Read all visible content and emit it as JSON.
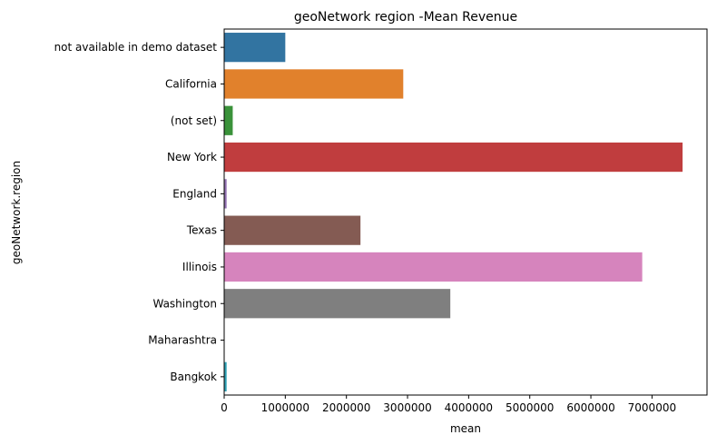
{
  "chart_data": {
    "type": "bar",
    "orientation": "horizontal",
    "title": "geoNetwork region -Mean Revenue",
    "xlabel": "mean",
    "ylabel": "geoNetwork.region",
    "xlim": [
      0,
      7900000
    ],
    "xticks": [
      0,
      1000000,
      2000000,
      3000000,
      4000000,
      5000000,
      6000000,
      7000000
    ],
    "xtick_labels": [
      "0",
      "1000000",
      "2000000",
      "3000000",
      "4000000",
      "5000000",
      "6000000",
      "7000000"
    ],
    "grid": false,
    "categories": [
      "not available in demo dataset",
      "California",
      "(not set)",
      "New York",
      "England",
      "Texas",
      "Illinois",
      "Washington",
      "Maharashtra",
      "Bangkok"
    ],
    "values": [
      1000000,
      2930000,
      140000,
      7500000,
      40000,
      2230000,
      6840000,
      3700000,
      5000,
      40000
    ],
    "colors": [
      "#3274a1",
      "#e1812c",
      "#3a923a",
      "#c03d3e",
      "#9372b2",
      "#845b53",
      "#d684bd",
      "#7f7f7f",
      "#a9aa35",
      "#2ea0b4"
    ]
  }
}
